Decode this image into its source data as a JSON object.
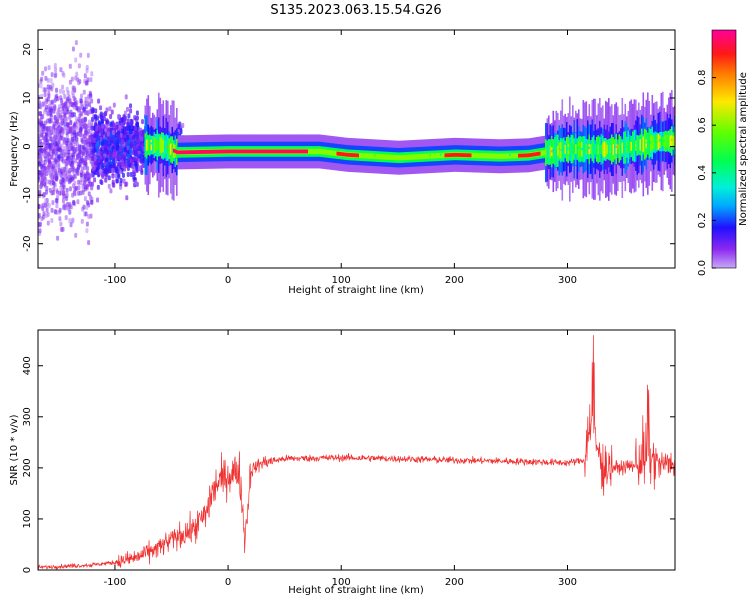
{
  "figure": {
    "title": "S135.2023.063.15.54.G26"
  },
  "colors": {
    "snr_line": "#f03030",
    "axes": "#000000",
    "background": "#ffffff"
  },
  "chart_data": [
    {
      "id": "spectrogram",
      "type": "heatmap",
      "xlabel": "Height of straight line (km)",
      "ylabel": "Frequency (Hz)",
      "xlim": [
        -168,
        395
      ],
      "ylim": [
        -25,
        24
      ],
      "xticks": [
        -100,
        0,
        100,
        200,
        300
      ],
      "yticks": [
        -20,
        -10,
        0,
        10,
        20
      ],
      "colorbar": {
        "label": "Normalized spectral amplitude",
        "range": [
          0.0,
          1.0
        ],
        "ticks": [
          0.0,
          0.2,
          0.4,
          0.6,
          0.8
        ],
        "tick_labels": [
          "0.0",
          "0.2",
          "0.4",
          "0.6",
          "0.8"
        ],
        "colormap": "gist_rainbow_r"
      },
      "ridge_frequency_track": [
        {
          "x": -60,
          "f": 0.3
        },
        {
          "x": -45,
          "f": -1.2
        },
        {
          "x": 0,
          "f": -1.0
        },
        {
          "x": 80,
          "f": -1.0
        },
        {
          "x": 105,
          "f": -1.7
        },
        {
          "x": 150,
          "f": -2.3
        },
        {
          "x": 200,
          "f": -1.7
        },
        {
          "x": 240,
          "f": -2.0
        },
        {
          "x": 265,
          "f": -1.8
        },
        {
          "x": 300,
          "f": -0.5
        },
        {
          "x": 340,
          "f": -0.6
        },
        {
          "x": 380,
          "f": 1.0
        },
        {
          "x": 395,
          "f": 1.2
        }
      ],
      "high_amplitude_segments": [
        {
          "x_start": -50,
          "x_end": 70,
          "f": -1.0,
          "amplitude": 0.95
        },
        {
          "x_start": 95,
          "x_end": 115,
          "f": -1.7,
          "amplitude": 0.9
        },
        {
          "x_start": 190,
          "x_end": 215,
          "f": -1.7,
          "amplitude": 0.9
        },
        {
          "x_start": 255,
          "x_end": 275,
          "f": -1.8,
          "amplitude": 0.9
        }
      ]
    },
    {
      "id": "snr",
      "type": "line",
      "xlabel": "Height of straight line (km)",
      "ylabel": "SNR (10 * v/v)",
      "xlim": [
        -168,
        395
      ],
      "ylim": [
        0,
        470
      ],
      "xticks": [
        -100,
        0,
        100,
        200,
        300
      ],
      "yticks": [
        0,
        100,
        200,
        300,
        400
      ],
      "series": [
        {
          "name": "SNR",
          "x": [
            -168,
            -140,
            -120,
            -100,
            -80,
            -60,
            -45,
            -30,
            -20,
            -15,
            -10,
            0,
            10,
            15,
            20,
            30,
            50,
            100,
            150,
            200,
            250,
            300,
            315,
            320,
            330,
            345,
            360,
            370,
            380,
            395
          ],
          "y": [
            5,
            8,
            10,
            15,
            25,
            45,
            65,
            80,
            110,
            150,
            170,
            185,
            195,
            60,
            195,
            210,
            218,
            220,
            218,
            215,
            213,
            210,
            215,
            300,
            205,
            200,
            205,
            230,
            205,
            210
          ]
        }
      ]
    }
  ]
}
